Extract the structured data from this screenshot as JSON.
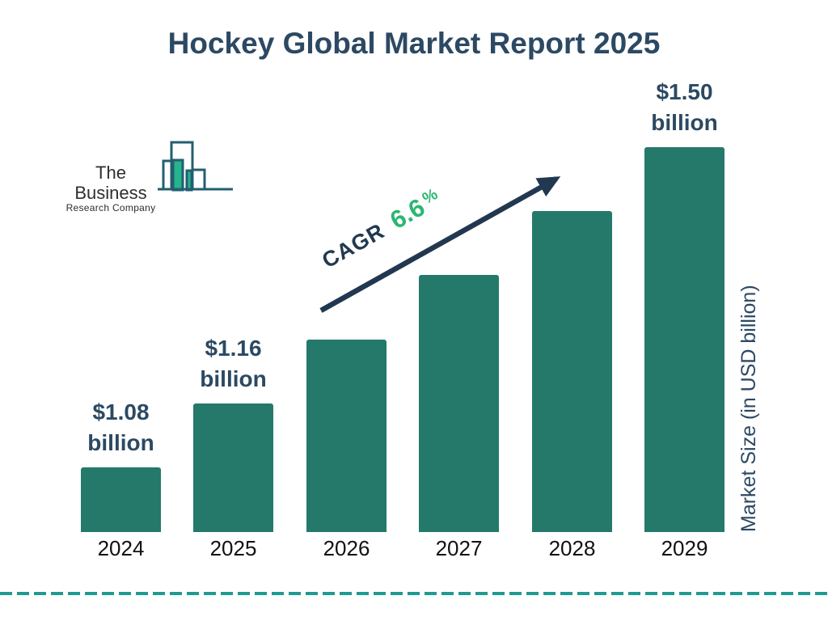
{
  "title": "Hockey Global Market Report 2025",
  "logo": {
    "name_line1": "The Business",
    "name_line2": "Research Company"
  },
  "chart_data": {
    "type": "bar",
    "categories": [
      "2024",
      "2025",
      "2026",
      "2027",
      "2028",
      "2029"
    ],
    "values": [
      1.08,
      1.16,
      1.24,
      1.32,
      1.41,
      1.5
    ],
    "value_labels": [
      {
        "line1": "$1.08",
        "line2": "billion"
      },
      {
        "line1": "$1.16",
        "line2": "billion"
      },
      null,
      null,
      null,
      {
        "line1": "$1.50",
        "line2": "billion"
      }
    ],
    "title": "Hockey Global Market Report 2025",
    "xlabel": "",
    "ylabel": "Market Size (in USD billion)",
    "annotation": {
      "label": "CAGR",
      "value": "6.6",
      "suffix": "%"
    },
    "legend": false,
    "grid": false,
    "baseline_hidden": true
  },
  "colors": {
    "title_color": "#2c4963",
    "value_label_color": "#2c4963",
    "axis_label_color": "#111111",
    "bar_color": "#24796b",
    "arrow_color": "#223850",
    "cagr_text_color": "#223850",
    "cagr_value_color": "#2bb673",
    "dashed_line_color": "#1d9c8f",
    "logo_outline": "#235e70",
    "logo_fill": "#24b58c",
    "logo_text": "#2e2e2e"
  }
}
